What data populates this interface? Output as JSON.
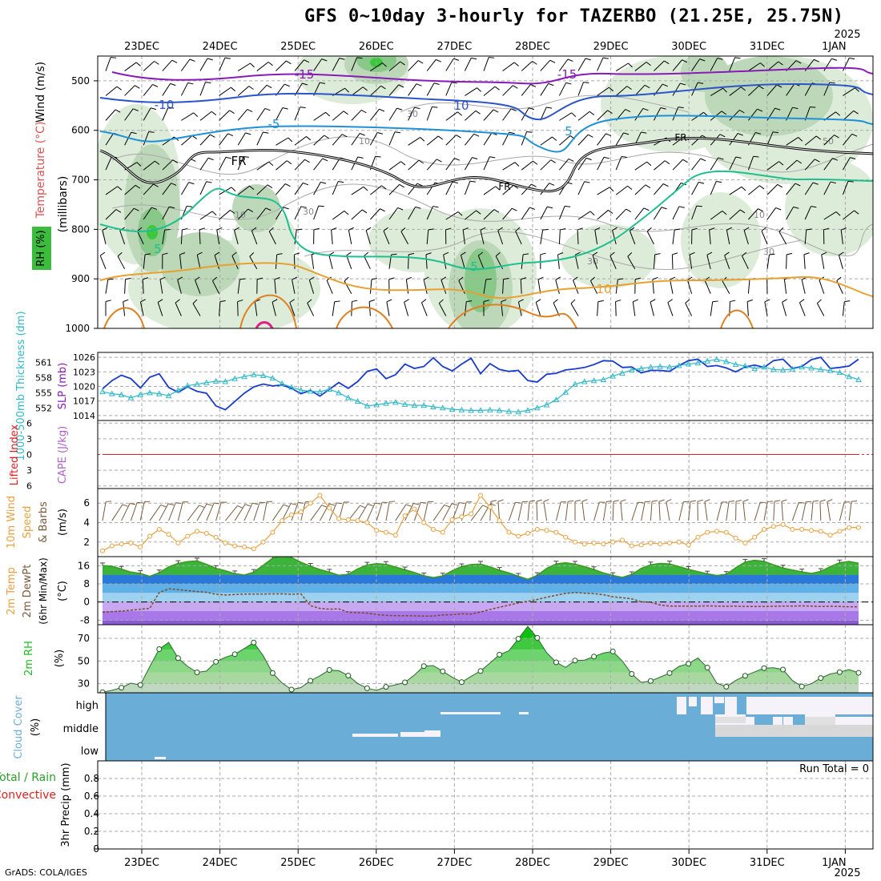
{
  "title": "GFS 0~10day 3-hourly for TAZERBO (21.25E, 25.75N)",
  "footer": "GrADS: COLA/IGES",
  "time_axis": {
    "day_labels": [
      "23DEC",
      "24DEC",
      "25DEC",
      "26DEC",
      "27DEC",
      "28DEC",
      "29DEC",
      "30DEC",
      "31DEC",
      "1JAN"
    ],
    "year_label": "2025"
  },
  "chart_data": [
    {
      "id": "upper_air",
      "type": "heatmap",
      "ylabel_parts": [
        "Wind (m/s)",
        "Temperature (°C)",
        "RH (%)",
        "(millibars)"
      ],
      "yticks": [
        500,
        600,
        700,
        800,
        900,
        1000
      ],
      "ylim": [
        1000,
        450
      ],
      "temperature_isotherms": [
        {
          "label": "-15",
          "color": "#8a1ab8",
          "level_mb": 490
        },
        {
          "label": "-10",
          "color": "#2b55c8",
          "level_mb": 530
        },
        {
          "label": "-5",
          "color": "#1e90d8",
          "level_mb": 590
        },
        {
          "label": "FR",
          "color": "#000000",
          "level_mb": 665
        },
        {
          "label": "5",
          "color": "#1fbf8f",
          "level_mb": 820
        },
        {
          "label": "10",
          "color": "#e8a030",
          "level_mb": 905
        }
      ],
      "rh_contour_labels": [
        "10",
        "30",
        "50"
      ]
    },
    {
      "id": "thickness_slp",
      "type": "line",
      "ylabel_left": "1000-500mb Thickness (dm)",
      "ylabel_right": "SLP (mb)",
      "thickness_ticks": [
        552,
        555,
        558,
        561
      ],
      "slp_ticks": [
        1014,
        1017,
        1020,
        1023,
        1026
      ],
      "series": [
        {
          "name": "SLP (mb)",
          "color": "#1a3ccc",
          "values": [
            1019.5,
            1021.2,
            1022.3,
            1021.6,
            1019.7,
            1021.9,
            1022.6,
            1019.8,
            1018.8,
            1019.9,
            1019.0,
            1018.6,
            1016.0,
            1015.2,
            1016.9,
            1018.6,
            1019.9,
            1020.5,
            1020.1,
            1020.3,
            1019.6,
            1018.5,
            1019.2,
            1018.0,
            1019.4,
            1020.8,
            1019.6,
            1021.0,
            1023.1,
            1023.6,
            1021.6,
            1022.4,
            1024.6,
            1023.7,
            1024.1,
            1025.9,
            1024.1,
            1023.2,
            1024.6,
            1025.8,
            1022.6,
            1024.7,
            1023.5,
            1023.1,
            1023.3,
            1021.2,
            1020.9,
            1022.5,
            1022.7,
            1023.4,
            1023.6,
            1023.9,
            1024.5,
            1025.3,
            1025.2,
            1023.9,
            1024.0,
            1022.8,
            1023.3,
            1023.3,
            1023.1,
            1024.3,
            1025.3,
            1025.6,
            1024.1,
            1024.3,
            1023.8,
            1023.0,
            1024.0,
            1024.4,
            1023.9,
            1025.3,
            1025.6,
            1023.7,
            1024.1,
            1025.5,
            1026.0,
            1023.7,
            1023.9,
            1024.2,
            1025.6
          ]
        },
        {
          "name": "1000-500mb Thickness (dm)",
          "color": "#30b8c8",
          "values": [
            555.2,
            554.8,
            554.6,
            554.0,
            554.6,
            555.0,
            554.8,
            554.4,
            555.5,
            556.4,
            556.7,
            557.0,
            557.3,
            557.2,
            557.8,
            558.2,
            558.6,
            558.4,
            557.9,
            556.8,
            556.1,
            555.5,
            555.3,
            555.2,
            555.7,
            555.0,
            554.0,
            553.3,
            552.4,
            552.6,
            552.9,
            553.1,
            552.7,
            552.5,
            552.5,
            552.2,
            552.0,
            551.7,
            551.6,
            551.5,
            551.5,
            551.6,
            551.5,
            551.3,
            551.2,
            551.5,
            552.0,
            552.6,
            553.6,
            555.1,
            556.7,
            557.2,
            557.4,
            557.6,
            558.3,
            558.9,
            559.5,
            559.8,
            560.1,
            560.2,
            560.1,
            560.4,
            560.7,
            560.9,
            561.3,
            561.6,
            561.2,
            560.6,
            560.3,
            559.8,
            560.1,
            559.6,
            559.5,
            559.7,
            560.1,
            559.9,
            559.6,
            559.4,
            559.0,
            558.2,
            557.6
          ]
        }
      ]
    },
    {
      "id": "lifted_cape",
      "type": "line",
      "ylabel_left": "Lifted Index",
      "ylabel_right": "CAPE (J/kg)",
      "yticks": [
        "6",
        "3",
        "0",
        "3",
        "6"
      ],
      "series": [
        {
          "name": "Lifted Index",
          "color": "#e02020",
          "values": [
            0,
            0,
            0,
            0,
            0,
            0,
            0,
            0,
            0,
            0,
            0,
            0,
            0,
            0,
            0,
            0,
            0,
            0,
            0,
            0,
            0,
            0,
            0,
            0,
            0,
            0,
            0,
            0,
            0,
            0,
            0,
            0,
            0,
            0,
            0,
            0,
            0,
            0,
            0,
            0,
            0,
            0,
            0,
            0,
            0,
            0,
            0,
            0,
            0,
            0,
            0,
            0,
            0,
            0,
            0,
            0,
            0,
            0,
            0,
            0,
            0,
            0,
            0,
            0,
            0,
            0,
            0,
            0,
            0,
            0,
            0,
            0,
            0,
            0,
            0,
            0,
            0,
            0,
            0,
            0,
            0
          ]
        }
      ]
    },
    {
      "id": "wind10m",
      "type": "line",
      "ylabel": [
        "10m Wind",
        "Speed",
        "& Barbs",
        "(m/s)"
      ],
      "yticks": [
        2,
        4,
        6
      ],
      "ylim": [
        0.5,
        7.5
      ],
      "series": [
        {
          "name": "10m Wind Speed",
          "color": "#e8a040",
          "values": [
            1.1,
            1.6,
            1.8,
            1.9,
            1.5,
            2.6,
            3.3,
            2.8,
            1.9,
            2.6,
            3.1,
            2.9,
            2.5,
            1.9,
            1.6,
            1.5,
            1.3,
            2.0,
            3.0,
            4.2,
            4.8,
            5.1,
            6.0,
            6.8,
            5.5,
            4.4,
            4.3,
            4.2,
            4.0,
            3.2,
            3.0,
            2.7,
            4.7,
            5.4,
            4.0,
            3.3,
            3.0,
            4.3,
            4.6,
            4.9,
            6.8,
            5.6,
            4.2,
            3.0,
            2.6,
            2.9,
            3.3,
            3.2,
            3.0,
            2.5,
            2.0,
            1.8,
            1.9,
            1.8,
            2.0,
            2.2,
            1.6,
            1.7,
            1.9,
            1.8,
            1.9,
            2.0,
            1.7,
            2.5,
            3.0,
            3.1,
            3.0,
            2.4,
            1.9,
            2.5,
            3.3,
            3.6,
            3.8,
            3.3,
            3.3,
            3.2,
            3.1,
            2.7,
            3.1,
            3.5,
            3.5
          ]
        }
      ]
    },
    {
      "id": "temp2m",
      "type": "area",
      "ylabel": [
        "2m Temp",
        "2m DewPt",
        "(6hr Min/Max)",
        "(°C)"
      ],
      "yticks": [
        16,
        8,
        0,
        -8
      ],
      "ylim": [
        -10,
        20
      ],
      "series": [
        {
          "name": "2m Temp",
          "color": "#3a9a20",
          "values": [
            16.0,
            15.8,
            14.5,
            13.2,
            12.6,
            11.3,
            12.9,
            15.5,
            17.0,
            17.8,
            18.1,
            16.6,
            14.8,
            13.8,
            12.5,
            11.9,
            13.1,
            16.2,
            19.3,
            20.4,
            19.6,
            17.5,
            15.8,
            14.3,
            13.2,
            11.8,
            12.2,
            14.6,
            16.3,
            16.9,
            16.6,
            15.4,
            14.2,
            13.0,
            11.6,
            10.8,
            11.5,
            13.8,
            15.6,
            16.5,
            16.7,
            15.5,
            14.0,
            12.8,
            11.4,
            10.0,
            11.7,
            14.8,
            16.8,
            17.3,
            16.7,
            15.6,
            14.3,
            12.8,
            11.7,
            10.9,
            12.1,
            14.8,
            16.4,
            17.0,
            16.8,
            15.6,
            14.4,
            13.4,
            12.4,
            11.7,
            12.2,
            15.1,
            17.6,
            18.4,
            17.9,
            16.4,
            15.0,
            14.1,
            13.3,
            12.6,
            13.5,
            15.6,
            17.3,
            17.9,
            17.1
          ]
        },
        {
          "name": "2m DewPt",
          "color": "#7a4a2a",
          "values": [
            -4.5,
            -4.2,
            -4.0,
            -3.6,
            -3.2,
            -2.8,
            4.2,
            5.8,
            5.5,
            5.0,
            4.6,
            4.3,
            3.4,
            3.1,
            3.3,
            3.5,
            3.5,
            3.5,
            3.6,
            3.6,
            3.4,
            3.6,
            -1.6,
            -2.8,
            -3.2,
            -3.0,
            -4.5,
            -4.7,
            -4.9,
            -5.5,
            -5.9,
            -6.0,
            -6.0,
            -6.1,
            -6.2,
            -6.2,
            -5.7,
            -5.6,
            -5.2,
            -5.3,
            -4.4,
            -3.3,
            -2.3,
            -1.4,
            -0.4,
            0.3,
            1.1,
            2.1,
            3.0,
            3.8,
            4.2,
            3.9,
            3.7,
            3.2,
            2.3,
            1.9,
            1.4,
            0.1,
            -0.1,
            -1.3,
            -1.8,
            -1.8,
            -1.8,
            -1.8,
            -1.7,
            -1.8,
            -1.9,
            -1.8,
            -2.0,
            -2.0,
            -2.0,
            -1.9,
            -1.8,
            -1.8,
            -1.7,
            -1.8,
            -2.0,
            -1.9,
            -2.0,
            -2.1,
            -2.1
          ]
        }
      ]
    },
    {
      "id": "rh2m",
      "type": "area",
      "ylabel": [
        "2m RH",
        "(%)"
      ],
      "yticks": [
        30,
        50,
        70
      ],
      "ylim": [
        22,
        82
      ],
      "series": [
        {
          "name": "2m RH",
          "color": "#1fbf1f",
          "values": [
            22.5,
            24.1,
            26.5,
            30.5,
            28.9,
            45.0,
            60.5,
            66.4,
            52.5,
            45.3,
            40.0,
            41.1,
            49.3,
            53.3,
            56.0,
            61.0,
            66.3,
            54.7,
            39.4,
            30.6,
            24.8,
            26.6,
            32.6,
            37.0,
            42.1,
            41.5,
            37.2,
            30.2,
            26.0,
            24.1,
            27.2,
            29.0,
            31.2,
            37.6,
            45.5,
            46.0,
            40.9,
            35.7,
            31.4,
            36.4,
            41.2,
            48.2,
            55.6,
            59.0,
            69.6,
            80.5,
            70.4,
            57.3,
            48.8,
            44.4,
            50.4,
            50.8,
            53.9,
            57.0,
            58.4,
            50.0,
            38.6,
            31.2,
            32.4,
            35.8,
            39.4,
            45.3,
            47.6,
            52.7,
            44.2,
            30.5,
            27.4,
            32.9,
            37.0,
            40.4,
            43.7,
            44.1,
            42.5,
            32.8,
            27.6,
            30.0,
            35.0,
            38.6,
            40.2,
            42.5,
            39.6
          ]
        }
      ]
    },
    {
      "id": "cloud",
      "type": "heatmap",
      "ylabel": [
        "Cloud Cover",
        "(%)"
      ],
      "levels": [
        "high",
        "middle",
        "low"
      ],
      "colors": {
        "cloudy": "#6aaed8",
        "clear": "#f6f2fa"
      }
    },
    {
      "id": "precip",
      "type": "bar",
      "ylabel_left": [
        "Total / Rain",
        "Convective"
      ],
      "ylabel": [
        "3hr Precip (mm)"
      ],
      "yticks": [
        "0",
        "0.2",
        "0.4",
        "0.6",
        "0.8"
      ],
      "ylim": [
        0,
        1.0
      ],
      "run_total": "Run Total = 0",
      "series": [
        {
          "name": "Total / Rain",
          "color": "#2aa02a",
          "values": [
            0,
            0,
            0,
            0,
            0,
            0,
            0,
            0,
            0,
            0,
            0,
            0,
            0,
            0,
            0,
            0,
            0,
            0,
            0,
            0,
            0,
            0,
            0,
            0,
            0,
            0,
            0,
            0,
            0,
            0,
            0,
            0,
            0,
            0,
            0,
            0,
            0,
            0,
            0,
            0,
            0,
            0,
            0,
            0,
            0,
            0,
            0,
            0,
            0,
            0,
            0,
            0,
            0,
            0,
            0,
            0,
            0,
            0,
            0,
            0,
            0,
            0,
            0,
            0,
            0,
            0,
            0,
            0,
            0,
            0,
            0,
            0,
            0,
            0,
            0,
            0,
            0,
            0,
            0,
            0,
            0
          ]
        },
        {
          "name": "Convective",
          "color": "#e02020",
          "values": [
            0,
            0,
            0,
            0,
            0,
            0,
            0,
            0,
            0,
            0,
            0,
            0,
            0,
            0,
            0,
            0,
            0,
            0,
            0,
            0,
            0,
            0,
            0,
            0,
            0,
            0,
            0,
            0,
            0,
            0,
            0,
            0,
            0,
            0,
            0,
            0,
            0,
            0,
            0,
            0,
            0,
            0,
            0,
            0,
            0,
            0,
            0,
            0,
            0,
            0,
            0,
            0,
            0,
            0,
            0,
            0,
            0,
            0,
            0,
            0,
            0,
            0,
            0,
            0,
            0,
            0,
            0,
            0,
            0,
            0,
            0,
            0,
            0,
            0,
            0,
            0,
            0,
            0,
            0,
            0,
            0
          ]
        }
      ]
    }
  ]
}
